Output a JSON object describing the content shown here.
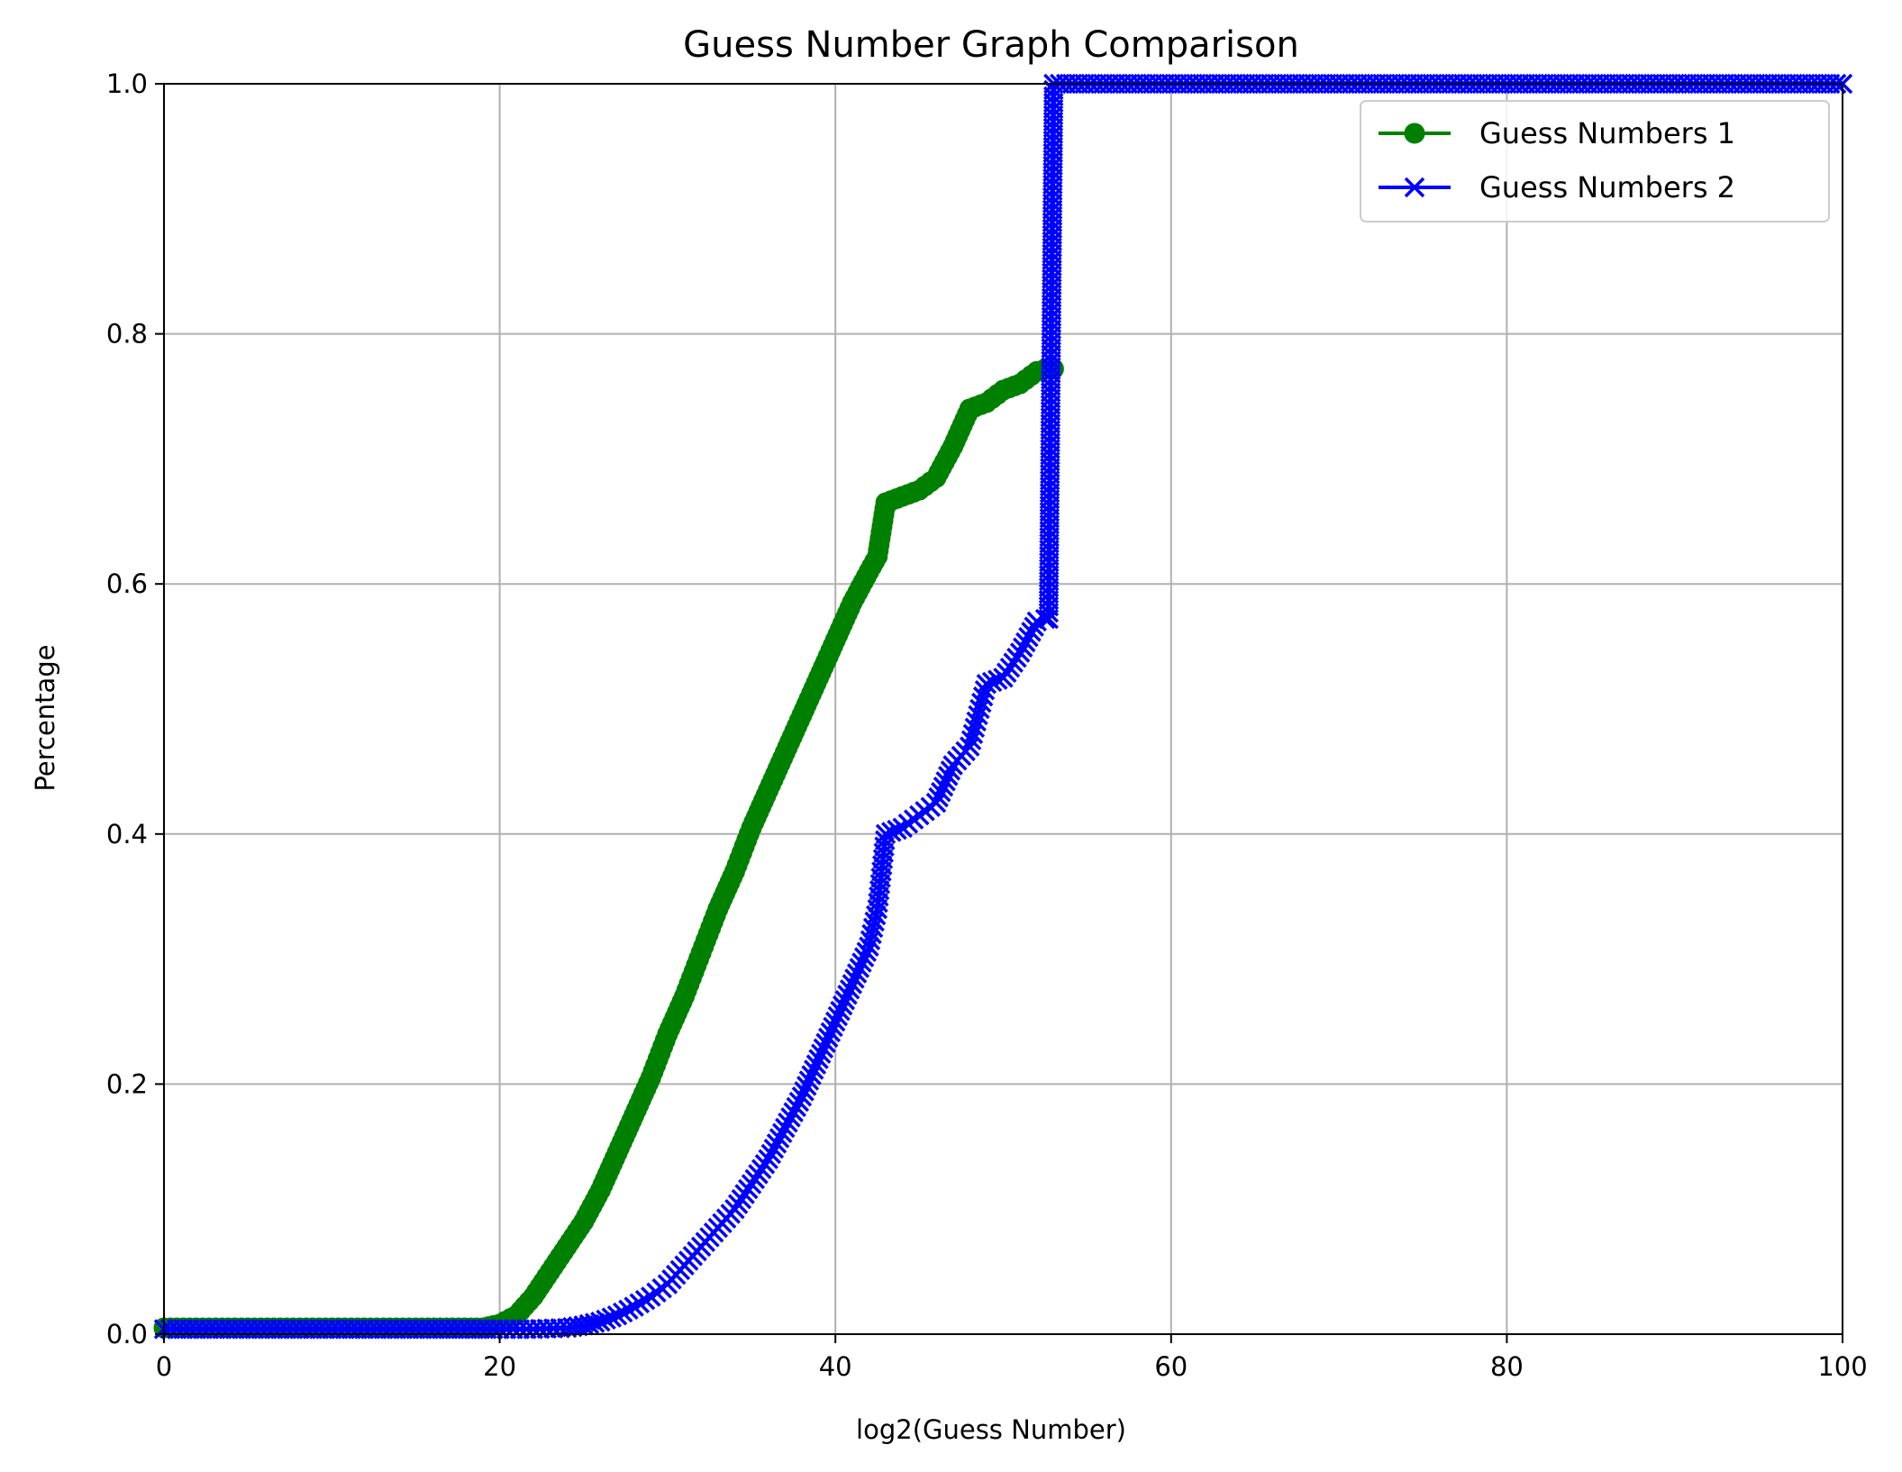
{
  "chart_data": {
    "type": "line",
    "title": "Guess Number Graph Comparison",
    "xlabel": "log2(Guess Number)",
    "ylabel": "Percentage",
    "xlim": [
      0,
      100
    ],
    "ylim": [
      0,
      1.0
    ],
    "xticks": [
      0,
      20,
      40,
      60,
      80,
      100
    ],
    "xtick_labels": [
      "0",
      "20",
      "40",
      "60",
      "80",
      "100"
    ],
    "yticks": [
      0.0,
      0.2,
      0.4,
      0.6,
      0.8,
      1.0
    ],
    "ytick_labels": [
      "0.0",
      "0.2",
      "0.4",
      "0.6",
      "0.8",
      "1.0"
    ],
    "grid": true,
    "legend_position": "top-right",
    "series": [
      {
        "name": "Guess Numbers 1",
        "color": "#008000",
        "marker": "circle",
        "x": [
          0,
          5,
          10,
          15,
          19,
          20,
          21,
          22,
          23,
          24,
          25,
          26,
          27,
          28,
          29,
          30,
          31,
          32,
          33,
          34,
          35,
          36,
          37,
          38,
          39,
          40,
          41,
          42,
          42.5,
          43,
          44,
          45,
          46,
          47,
          48,
          49,
          50,
          51,
          52,
          52.5,
          53
        ],
        "y": [
          0.005,
          0.005,
          0.005,
          0.005,
          0.005,
          0.008,
          0.015,
          0.03,
          0.05,
          0.07,
          0.09,
          0.115,
          0.145,
          0.175,
          0.205,
          0.24,
          0.27,
          0.305,
          0.34,
          0.37,
          0.405,
          0.435,
          0.465,
          0.495,
          0.525,
          0.555,
          0.585,
          0.61,
          0.622,
          0.665,
          0.67,
          0.675,
          0.685,
          0.71,
          0.74,
          0.745,
          0.755,
          0.76,
          0.77,
          0.772,
          0.772
        ]
      },
      {
        "name": "Guess Numbers 2",
        "color": "#0000ff",
        "marker": "x",
        "x": [
          0,
          5,
          10,
          15,
          20,
          22,
          24,
          25,
          26,
          27,
          28,
          29,
          30,
          31,
          32,
          33,
          34,
          35,
          36,
          37,
          38,
          39,
          40,
          41,
          42,
          42.5,
          43,
          44,
          45,
          46,
          47,
          48,
          49,
          50,
          51,
          52,
          52.5,
          52.7,
          53,
          60,
          70,
          80,
          90,
          100
        ],
        "y": [
          0.004,
          0.004,
          0.004,
          0.004,
          0.004,
          0.004,
          0.005,
          0.007,
          0.01,
          0.015,
          0.022,
          0.03,
          0.04,
          0.055,
          0.07,
          0.085,
          0.1,
          0.12,
          0.14,
          0.165,
          0.19,
          0.22,
          0.25,
          0.28,
          0.31,
          0.34,
          0.4,
          0.405,
          0.415,
          0.425,
          0.455,
          0.47,
          0.52,
          0.525,
          0.545,
          0.57,
          0.572,
          0.572,
          1.0,
          1.0,
          1.0,
          1.0,
          1.0,
          1.0
        ]
      }
    ]
  }
}
